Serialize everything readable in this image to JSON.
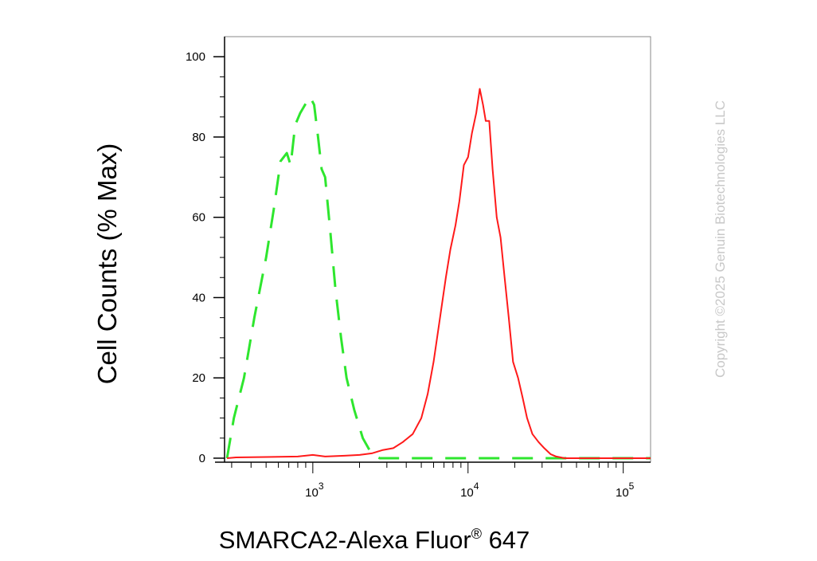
{
  "chart_data": {
    "type": "line",
    "xlabel": "SMARCA2-Alexa Fluor",
    "xlabel_superscript": "®",
    "xlabel_suffix": " 647",
    "ylabel": "Cell Counts (% Max)",
    "x_scale": "log",
    "xlim": [
      270,
      150000
    ],
    "ylim": [
      -1,
      105
    ],
    "y_ticks": [
      0,
      20,
      40,
      60,
      80,
      100
    ],
    "x_ticks": [
      {
        "base": "10",
        "exp": "3",
        "value": 1000
      },
      {
        "base": "10",
        "exp": "4",
        "value": 10000
      },
      {
        "base": "10",
        "exp": "5",
        "value": 100000
      }
    ],
    "grid": false,
    "legend": "none",
    "series": [
      {
        "color": "#2ee62e",
        "dash": "dashed",
        "points": [
          [
            280,
            0
          ],
          [
            310,
            10
          ],
          [
            360,
            20
          ],
          [
            420,
            35
          ],
          [
            500,
            50
          ],
          [
            560,
            62
          ],
          [
            620,
            74
          ],
          [
            680,
            76
          ],
          [
            720,
            73
          ],
          [
            770,
            83
          ],
          [
            830,
            86
          ],
          [
            890,
            88
          ],
          [
            960,
            90
          ],
          [
            1020,
            88
          ],
          [
            1080,
            80
          ],
          [
            1140,
            72
          ],
          [
            1200,
            70
          ],
          [
            1300,
            56
          ],
          [
            1400,
            42
          ],
          [
            1520,
            30
          ],
          [
            1650,
            20
          ],
          [
            1850,
            12
          ],
          [
            2100,
            5
          ],
          [
            2400,
            1
          ],
          [
            2700,
            0
          ],
          [
            3000,
            0
          ],
          [
            10000,
            0
          ],
          [
            100000,
            0
          ],
          [
            150000,
            0
          ]
        ]
      },
      {
        "color": "#ff1a1a",
        "dash": "solid",
        "points": [
          [
            280,
            0
          ],
          [
            320,
            0.2
          ],
          [
            500,
            0.3
          ],
          [
            800,
            0.4
          ],
          [
            1000,
            0.8
          ],
          [
            1200,
            0.4
          ],
          [
            1600,
            0.6
          ],
          [
            2000,
            0.8
          ],
          [
            2400,
            1.2
          ],
          [
            2800,
            2
          ],
          [
            3300,
            2.5
          ],
          [
            3800,
            4
          ],
          [
            4400,
            6
          ],
          [
            5000,
            10
          ],
          [
            5500,
            16
          ],
          [
            6000,
            24
          ],
          [
            6600,
            35
          ],
          [
            7200,
            45
          ],
          [
            7700,
            52
          ],
          [
            8300,
            58
          ],
          [
            8800,
            64
          ],
          [
            9400,
            73
          ],
          [
            10000,
            75
          ],
          [
            10600,
            81
          ],
          [
            11300,
            86
          ],
          [
            11900,
            92
          ],
          [
            12500,
            88
          ],
          [
            13000,
            84
          ],
          [
            13700,
            84
          ],
          [
            14400,
            72
          ],
          [
            15300,
            60
          ],
          [
            16200,
            55
          ],
          [
            17200,
            45
          ],
          [
            18300,
            35
          ],
          [
            19500,
            24
          ],
          [
            21000,
            20
          ],
          [
            22500,
            15
          ],
          [
            24000,
            10
          ],
          [
            26000,
            6
          ],
          [
            28500,
            4
          ],
          [
            31000,
            2.5
          ],
          [
            34000,
            1
          ],
          [
            37000,
            0.4
          ],
          [
            42000,
            0
          ],
          [
            60000,
            0
          ],
          [
            100000,
            0
          ],
          [
            150000,
            0
          ]
        ]
      }
    ]
  },
  "watermark": "Copyright ©2025 Genuin Biotechnologies LLC"
}
